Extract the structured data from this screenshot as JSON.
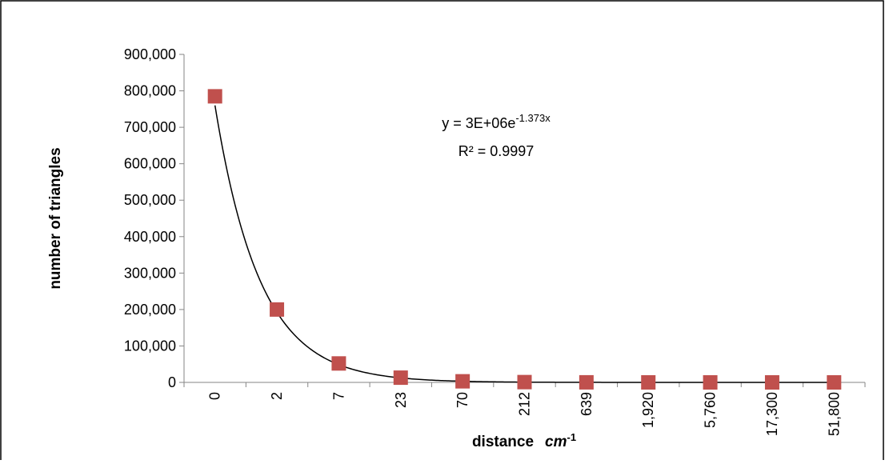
{
  "chart_data": {
    "type": "scatter",
    "ylabel": "number of triangles",
    "xlabel": "distance",
    "xlabel_unit": "cm",
    "xlabel_unit_exp": "-1",
    "categories": [
      "0",
      "2",
      "7",
      "23",
      "70",
      "212",
      "639",
      "1,920",
      "5,760",
      "17,300",
      "51,800"
    ],
    "series": [
      {
        "color": "#c0504d",
        "values": [
          785000,
          200000,
          52000,
          13000,
          3000,
          800,
          200,
          50,
          15,
          5,
          1
        ]
      }
    ],
    "ylim": [
      0,
      900000
    ],
    "yticks": [
      0,
      {
        "value": 100000,
        "label": "100,000"
      },
      {
        "value": 200000,
        "label": "200,000"
      },
      {
        "value": 300000,
        "label": "300,000"
      },
      {
        "value": 400000,
        "label": "400,000"
      },
      {
        "value": 500000,
        "label": "500,000"
      },
      {
        "value": 600000,
        "label": "600,000"
      },
      {
        "value": 700000,
        "label": "700,000"
      },
      {
        "value": 800000,
        "label": "800,000"
      },
      {
        "value": 900000,
        "label": "900,000"
      }
    ],
    "trendline": {
      "type": "exponential",
      "a": 3000000,
      "b": -1.373,
      "color": "#000000",
      "equation": "y = 3E+06e",
      "equation_exp": "-1.373x",
      "r2_label": "R² = 0.9997"
    }
  }
}
